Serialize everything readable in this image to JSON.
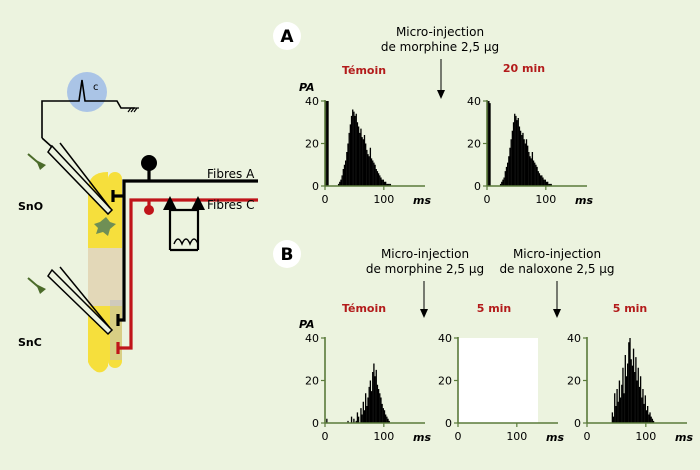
{
  "panel_a": {
    "letter": "A",
    "injection_label": [
      "Micro-injection",
      "de morphine 2,5 μg"
    ],
    "plot_left_title": "Témoin",
    "plot_right_title": "20 min"
  },
  "panel_b": {
    "letter": "B",
    "injection1_label": [
      "Micro-injection",
      "de morphine 2,5 μg"
    ],
    "injection2_label": [
      "Micro-injection",
      "de naloxone 2,5 μg"
    ],
    "plot1_title": "Témoin",
    "plot2_title": "5 min",
    "plot3_title": "5 min"
  },
  "schematic": {
    "sno_label": "SnO",
    "snc_label": "SnC",
    "fibres_a_label": "Fibres A",
    "fibres_c_label": "Fibres C",
    "recorder_label": "c"
  },
  "plot_labels": {
    "y_label": "PA",
    "x_unit": "ms",
    "y_ticks": [
      "0",
      "20",
      "40"
    ],
    "x_ticks": [
      "0",
      "100"
    ]
  },
  "colors": {
    "background": "#ecf3df",
    "axis_green": "#5a7a3a",
    "title_red": "#b31b1b",
    "fibre_red": "#c0141a",
    "yellow": "#f6df3c",
    "beige": "#e3d8b8",
    "recorder_blue": "#aac4e6"
  },
  "chart_data": [
    {
      "id": "A-temoin",
      "type": "bar",
      "title": "Témoin",
      "ylabel": "PA",
      "xlabel": "ms",
      "xlim": [
        0,
        170
      ],
      "ylim": [
        0,
        40
      ],
      "x_ticks": [
        0,
        100
      ],
      "y_ticks": [
        0,
        20,
        40
      ],
      "bin_ms": 2,
      "values": [
        40,
        40,
        40,
        0,
        0,
        0,
        0,
        0,
        0,
        0,
        0,
        1,
        2,
        3,
        5,
        8,
        10,
        12,
        16,
        20,
        25,
        29,
        33,
        36,
        35,
        33,
        34,
        30,
        28,
        25,
        27,
        23,
        22,
        24,
        20,
        17,
        15,
        14,
        18,
        13,
        12,
        11,
        10,
        8,
        7,
        6,
        5,
        4,
        3,
        3,
        2,
        2,
        1,
        1,
        1,
        1,
        0,
        0
      ]
    },
    {
      "id": "A-20min",
      "type": "bar",
      "title": "20 min",
      "ylabel": "PA",
      "xlabel": "ms",
      "xlim": [
        0,
        170
      ],
      "ylim": [
        0,
        40
      ],
      "x_ticks": [
        0,
        100
      ],
      "y_ticks": [
        0,
        20,
        40
      ],
      "bin_ms": 2,
      "values": [
        40,
        40,
        39,
        0,
        0,
        0,
        0,
        0,
        0,
        0,
        0,
        1,
        2,
        3,
        4,
        7,
        9,
        11,
        14,
        18,
        22,
        26,
        30,
        34,
        33,
        31,
        32,
        28,
        26,
        24,
        25,
        22,
        20,
        22,
        19,
        16,
        14,
        13,
        16,
        12,
        11,
        10,
        9,
        7,
        6,
        5,
        5,
        4,
        3,
        3,
        2,
        2,
        1,
        1,
        1,
        0,
        0,
        0
      ]
    },
    {
      "id": "B-temoin",
      "type": "bar",
      "title": "Témoin",
      "ylabel": "PA",
      "xlabel": "ms",
      "xlim": [
        0,
        170
      ],
      "ylim": [
        0,
        40
      ],
      "x_ticks": [
        0,
        100
      ],
      "y_ticks": [
        0,
        20,
        40
      ],
      "bin_ms": 2,
      "values": [
        0,
        2,
        0,
        0,
        0,
        0,
        0,
        0,
        0,
        0,
        0,
        0,
        0,
        0,
        0,
        0,
        0,
        0,
        0,
        1,
        0,
        0,
        3,
        0,
        2,
        0,
        1,
        5,
        3,
        0,
        7,
        4,
        10,
        6,
        14,
        8,
        12,
        17,
        20,
        15,
        24,
        28,
        22,
        25,
        18,
        16,
        14,
        12,
        9,
        7,
        6,
        4,
        3,
        2,
        1,
        0,
        0,
        0
      ]
    },
    {
      "id": "B-5min-morphine",
      "type": "bar",
      "title": "5 min",
      "ylabel": "",
      "xlabel": "ms",
      "xlim": [
        0,
        170
      ],
      "ylim": [
        0,
        40
      ],
      "x_ticks": [
        0,
        100
      ],
      "y_ticks": [
        0,
        20,
        40
      ],
      "bin_ms": 2,
      "values": []
    },
    {
      "id": "B-5min-naloxone",
      "type": "bar",
      "title": "5 min",
      "ylabel": "",
      "xlabel": "ms",
      "xlim": [
        0,
        170
      ],
      "ylim": [
        0,
        40
      ],
      "x_ticks": [
        0,
        100
      ],
      "y_ticks": [
        0,
        20,
        40
      ],
      "bin_ms": 2,
      "values": [
        0,
        0,
        0,
        0,
        0,
        0,
        0,
        0,
        0,
        0,
        0,
        0,
        0,
        0,
        0,
        0,
        0,
        0,
        0,
        0,
        0,
        5,
        3,
        14,
        8,
        16,
        10,
        20,
        12,
        18,
        26,
        14,
        32,
        22,
        28,
        38,
        40,
        30,
        27,
        35,
        24,
        31,
        20,
        26,
        17,
        22,
        12,
        16,
        9,
        13,
        6,
        8,
        4,
        5,
        3,
        2,
        1,
        0
      ]
    }
  ]
}
